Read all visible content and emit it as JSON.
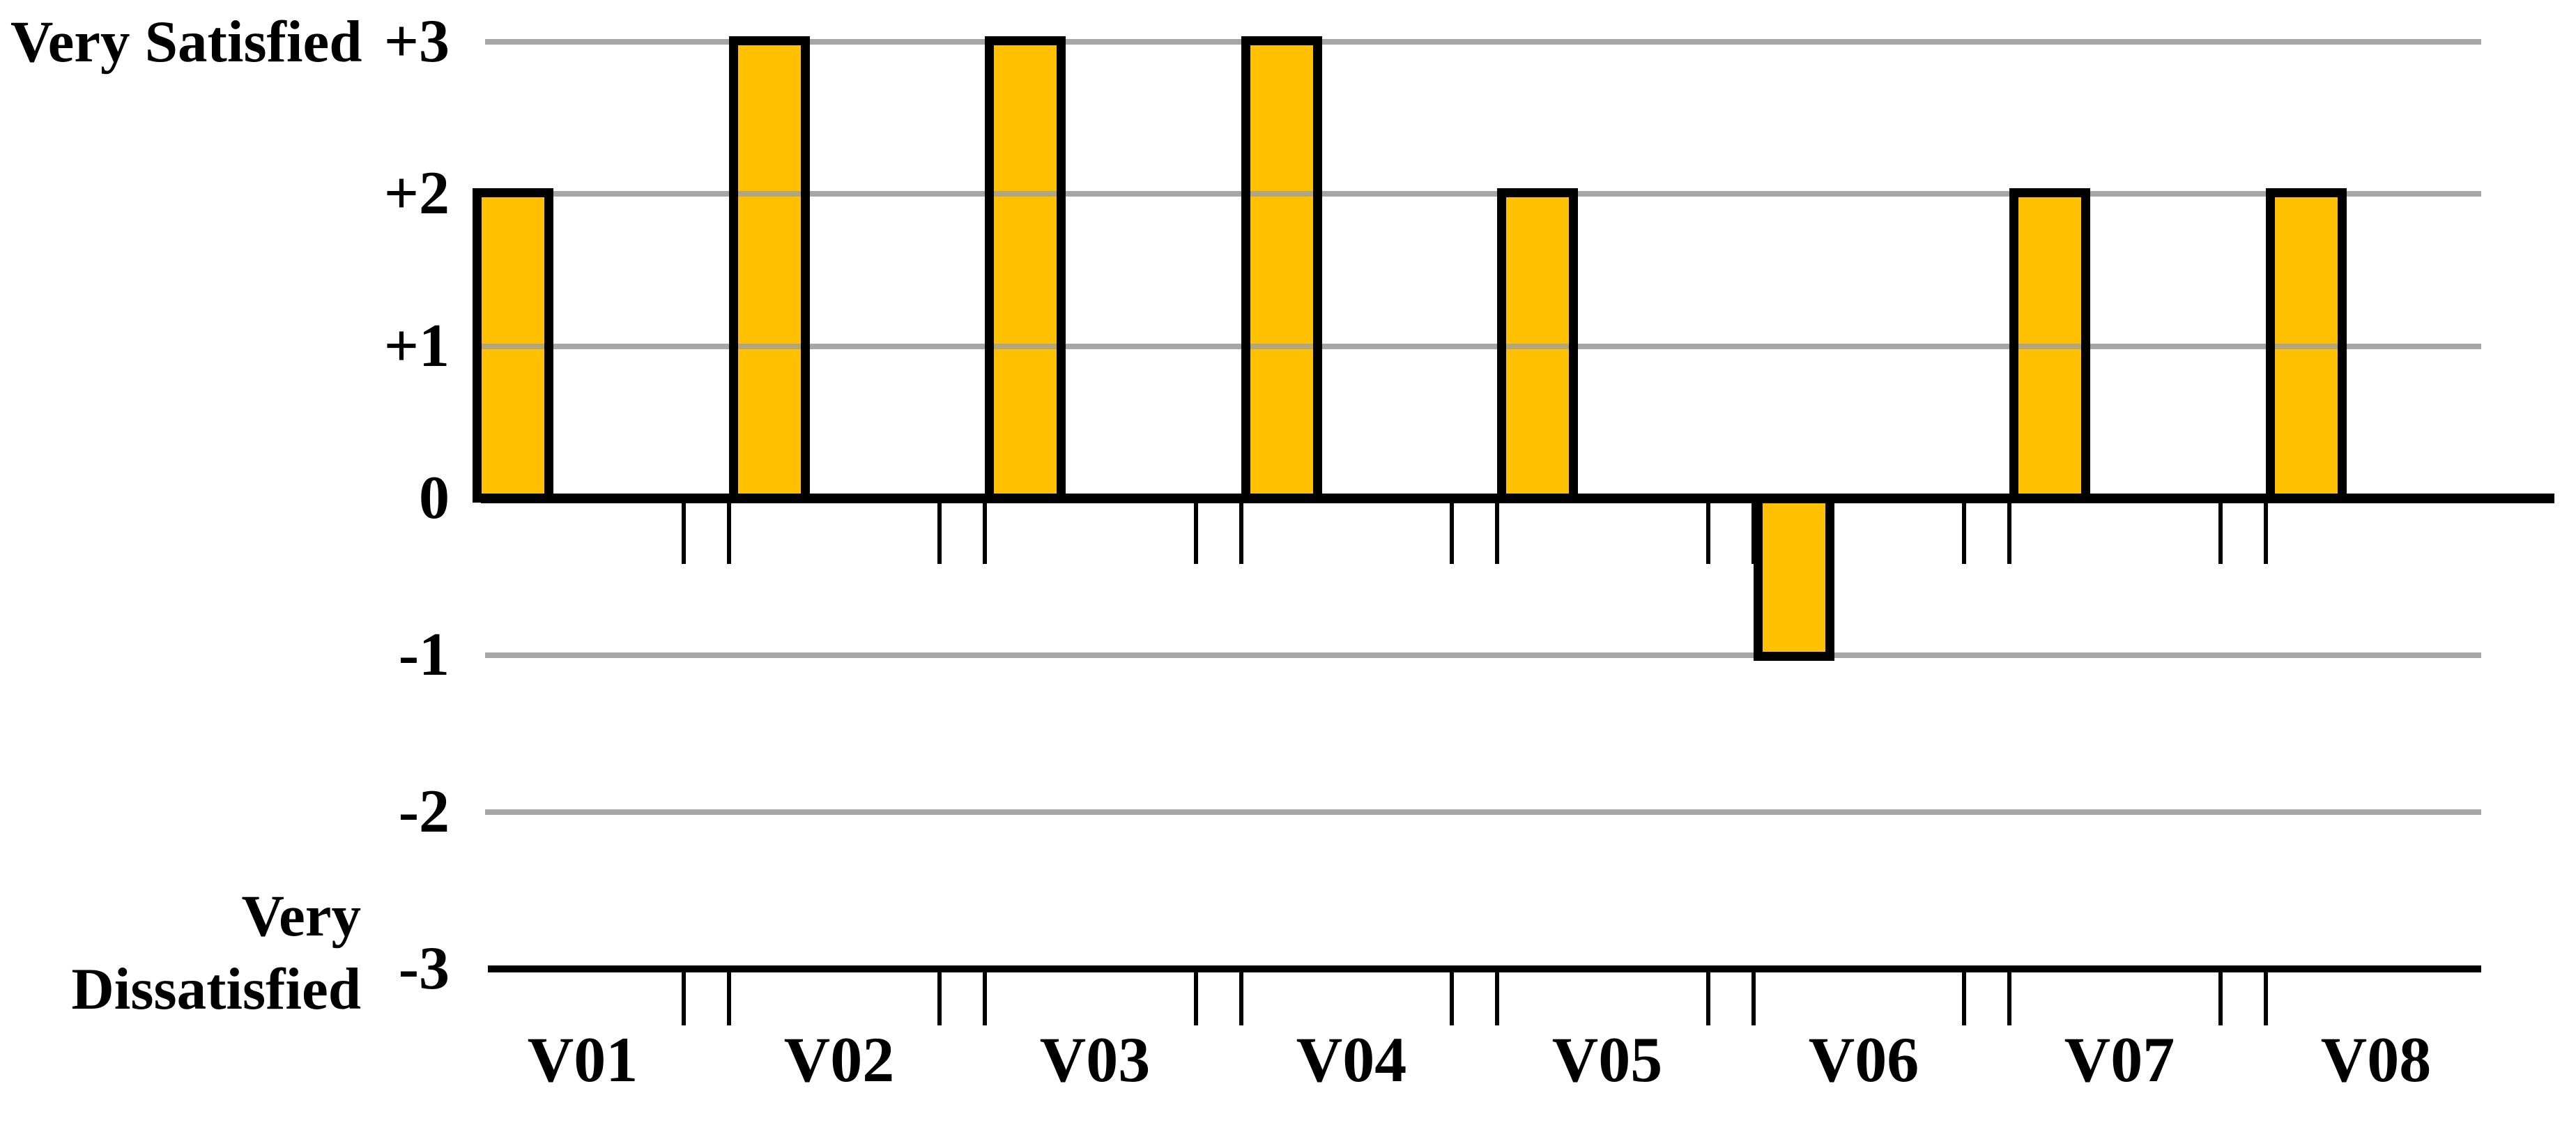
{
  "chart_data": {
    "type": "bar",
    "title": "",
    "categories": [
      "V01",
      "V02",
      "V03",
      "V04",
      "V05",
      "V06",
      "V07",
      "V08"
    ],
    "values": [
      2,
      3,
      3,
      3,
      2,
      -1,
      2,
      2
    ],
    "ylim": [
      -3,
      3
    ],
    "y_ticks": [
      3,
      2,
      1,
      0,
      -1,
      -2,
      -3
    ],
    "y_tick_labels": [
      "+3",
      "+2",
      "+1",
      "0",
      "-1",
      "-2",
      "-3"
    ],
    "y_axis_annotation_top": "Very Satisfied",
    "y_axis_annotation_bottom_lines": [
      "Very",
      "Dissatisfied"
    ],
    "xlabel": "",
    "ylabel": "",
    "grid": "horizontal gray gridlines at +3, +2, +1, -1, -2; solid black lines at 0 and -3",
    "tick_style": "paired small tick marks below the 0 axis and below the -3 line at category boundaries",
    "legend": "none"
  },
  "colors": {
    "background": "#FFFFFF",
    "bar_fill": "#FFC000",
    "bar_border": "#000000",
    "gridline": "#A6A6A6",
    "axis_line": "#000000",
    "gridline_over_bar": "#B3A67E",
    "text": "#000000"
  }
}
